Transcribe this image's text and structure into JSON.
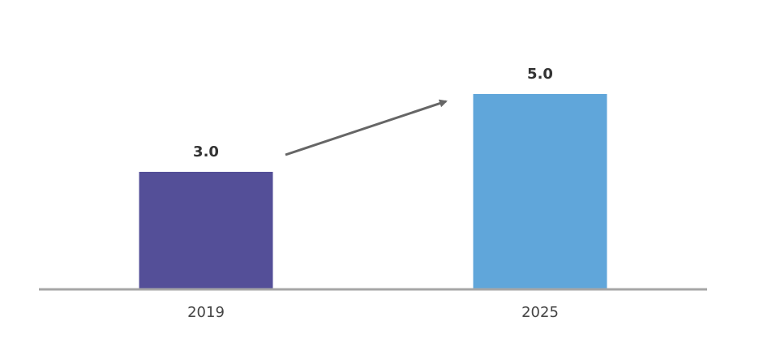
{
  "chart_data": {
    "type": "bar",
    "categories": [
      "2019",
      "2025"
    ],
    "values": [
      3.0,
      5.0
    ],
    "value_labels": [
      "3.0",
      "5.0"
    ],
    "colors": [
      "#544f98",
      "#60a6da"
    ],
    "title": "",
    "xlabel": "",
    "ylabel": "",
    "ylim": [
      0,
      5.5
    ],
    "grid": false,
    "legend": "none",
    "annotation": "trend-arrow",
    "baseline_color": "#a6a6a6",
    "arrow_color": "#666666"
  }
}
